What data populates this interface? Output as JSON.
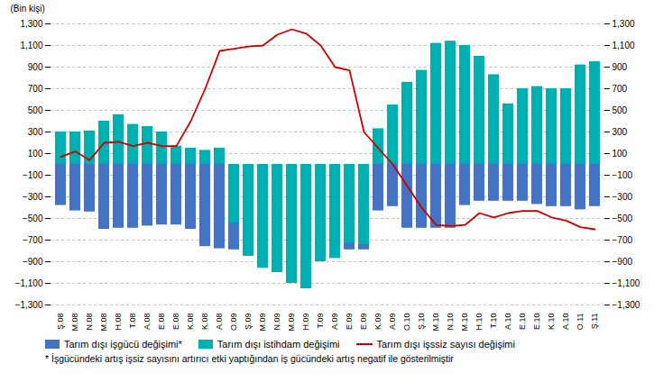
{
  "chart_data": {
    "type": "bar",
    "ylabel": "(Bin kişi)",
    "caption": "* İşgücündeki artış işsiz sayısını artırıcı etki yaptığından iş gücündeki artış negatif ile gösterilmiştir",
    "categories": [
      "Ş.08",
      "M.08",
      "N.08",
      "M.08",
      "H.08",
      "T.08",
      "A.08",
      "E.08",
      "E.08",
      "K.08",
      "K.08",
      "A.08",
      "O.09",
      "Ş.09",
      "M.09",
      "N.09",
      "M.09",
      "H.09",
      "T.09",
      "A.09",
      "E.09",
      "E.09",
      "K.09",
      "A.09",
      "O.10",
      "Ş.10",
      "M.10",
      "N.10",
      "M.10",
      "H.10",
      "T.10",
      "A.10",
      "E.10",
      "E.10",
      "K.10",
      "A.10",
      "O.11",
      "Ş.11"
    ],
    "series": [
      {
        "name": "Tarım dışı işgücü değişimi*",
        "type": "bar",
        "color": "#4472C4",
        "values": [
          -380,
          -430,
          -440,
          -600,
          -590,
          -590,
          -570,
          -560,
          -560,
          -600,
          -760,
          -780,
          -790,
          -800,
          -800,
          -790,
          -800,
          -800,
          -790,
          -790,
          -790,
          -790,
          -430,
          -390,
          -590,
          -590,
          -590,
          -590,
          -380,
          -340,
          -340,
          -340,
          -340,
          -370,
          -390,
          -390,
          -420,
          -390
        ]
      },
      {
        "name": "Tarım dışı istihdam değişimi",
        "type": "bar",
        "color": "#00B0B0",
        "values": [
          300,
          300,
          310,
          400,
          460,
          370,
          350,
          300,
          170,
          150,
          130,
          150,
          -540,
          -850,
          -960,
          -1000,
          -1100,
          -1150,
          -900,
          -870,
          -730,
          -740,
          330,
          550,
          760,
          870,
          1120,
          1140,
          1100,
          1000,
          830,
          560,
          700,
          720,
          700,
          700,
          920,
          950
        ]
      },
      {
        "name": "Tarım dışı işssiz sayısı değişimi",
        "type": "line",
        "color": "#CC0000",
        "values": [
          70,
          120,
          40,
          200,
          210,
          170,
          200,
          170,
          170,
          400,
          700,
          1050,
          1070,
          1090,
          1100,
          1200,
          1250,
          1210,
          1100,
          900,
          870,
          300,
          150,
          0,
          -200,
          -400,
          -560,
          -570,
          -560,
          -450,
          -490,
          -450,
          -430,
          -430,
          -490,
          -520,
          -580,
          -600
        ]
      }
    ],
    "ylim": [
      -1300,
      1300
    ],
    "yticks": [
      -1300,
      -1100,
      -900,
      -700,
      -500,
      -300,
      -100,
      100,
      300,
      500,
      700,
      900,
      1100,
      1300
    ],
    "grid": true,
    "legend": "bottom"
  }
}
